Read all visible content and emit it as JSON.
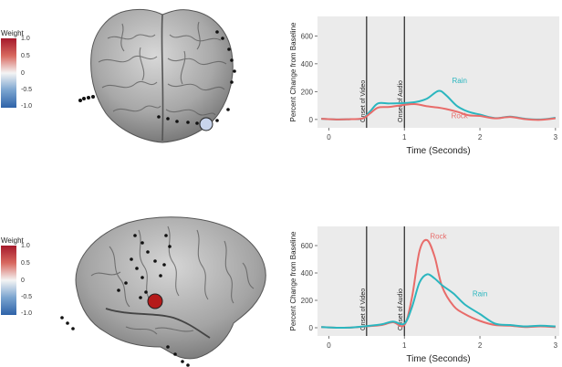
{
  "legend_top": {
    "title": "Weight",
    "ticks": [
      "1.0",
      "0.5",
      "0",
      "-0.5",
      "-1.0"
    ],
    "colors": {
      "max": "#a5192b",
      "mid": "#f4f4f4",
      "min": "#2e62a8"
    }
  },
  "legend_bottom": {
    "title": "Weight",
    "ticks": [
      "1.0",
      "0.5",
      "0",
      "-0.5",
      "-1.0"
    ],
    "colors": {
      "max": "#a5192b",
      "mid": "#f4f4f4",
      "min": "#2e62a8"
    }
  },
  "brain_top": {
    "view": "posterior",
    "highlight_color": "#c8d4ec"
  },
  "brain_bottom": {
    "view": "lateral-left",
    "highlight_color": "#b51a1a"
  },
  "chart_data": [
    {
      "type": "line",
      "xlabel": "Time (Seconds)",
      "ylabel": "Percent Change from Baseline",
      "xlim": [
        -0.15,
        3.05
      ],
      "ylim": [
        -60,
        740
      ],
      "xticks": [
        "0",
        "1",
        "2",
        "3"
      ],
      "yticks": [
        "0",
        "200",
        "400",
        "600"
      ],
      "grid": false,
      "background": "#ebebeb",
      "vlines": [
        {
          "x": 0.5,
          "label": "Onset of Video"
        },
        {
          "x": 1.0,
          "label": "Onset of Audio"
        }
      ],
      "series": [
        {
          "name": "Rain",
          "color": "#2bb6bf",
          "x": [
            -0.1,
            0.1,
            0.3,
            0.45,
            0.55,
            0.65,
            0.8,
            1.0,
            1.15,
            1.3,
            1.45,
            1.55,
            1.7,
            1.85,
            2.0,
            2.2,
            2.4,
            2.6,
            2.8,
            3.0
          ],
          "y": [
            5,
            0,
            2,
            8,
            60,
            115,
            115,
            118,
            125,
            150,
            205,
            175,
            95,
            55,
            35,
            10,
            20,
            5,
            0,
            12
          ]
        },
        {
          "name": "Rock",
          "color": "#e86c6a",
          "x": [
            -0.1,
            0.1,
            0.3,
            0.45,
            0.55,
            0.65,
            0.8,
            1.0,
            1.15,
            1.3,
            1.45,
            1.55,
            1.7,
            1.85,
            2.0,
            2.2,
            2.4,
            2.6,
            2.8,
            3.0
          ],
          "y": [
            5,
            0,
            2,
            8,
            45,
            85,
            90,
            105,
            110,
            95,
            85,
            75,
            55,
            30,
            25,
            8,
            18,
            2,
            -3,
            8
          ]
        }
      ]
    },
    {
      "type": "line",
      "xlabel": "Time (Seconds)",
      "ylabel": "Percent Change from Baseline",
      "xlim": [
        -0.15,
        3.05
      ],
      "ylim": [
        -60,
        740
      ],
      "xticks": [
        "0",
        "1",
        "2",
        "3"
      ],
      "yticks": [
        "0",
        "200",
        "400",
        "600"
      ],
      "grid": false,
      "background": "#ebebeb",
      "vlines": [
        {
          "x": 0.5,
          "label": "Onset of Video"
        },
        {
          "x": 1.0,
          "label": "Onset of Audio"
        }
      ],
      "series": [
        {
          "name": "Rock",
          "color": "#e86c6a",
          "x": [
            -0.1,
            0.1,
            0.3,
            0.5,
            0.7,
            0.85,
            1.0,
            1.1,
            1.2,
            1.3,
            1.4,
            1.5,
            1.65,
            1.8,
            2.0,
            2.2,
            2.4,
            2.6,
            2.8,
            3.0
          ],
          "y": [
            5,
            0,
            2,
            10,
            20,
            40,
            20,
            220,
            560,
            640,
            520,
            300,
            160,
            100,
            50,
            20,
            15,
            5,
            10,
            5
          ]
        },
        {
          "name": "Rain",
          "color": "#2bb6bf",
          "x": [
            -0.1,
            0.1,
            0.3,
            0.5,
            0.7,
            0.85,
            1.0,
            1.1,
            1.2,
            1.3,
            1.4,
            1.5,
            1.65,
            1.8,
            2.0,
            2.2,
            2.4,
            2.6,
            2.8,
            3.0
          ],
          "y": [
            5,
            0,
            2,
            12,
            25,
            45,
            30,
            150,
            330,
            390,
            360,
            310,
            250,
            170,
            100,
            30,
            20,
            10,
            15,
            10
          ]
        }
      ]
    }
  ]
}
